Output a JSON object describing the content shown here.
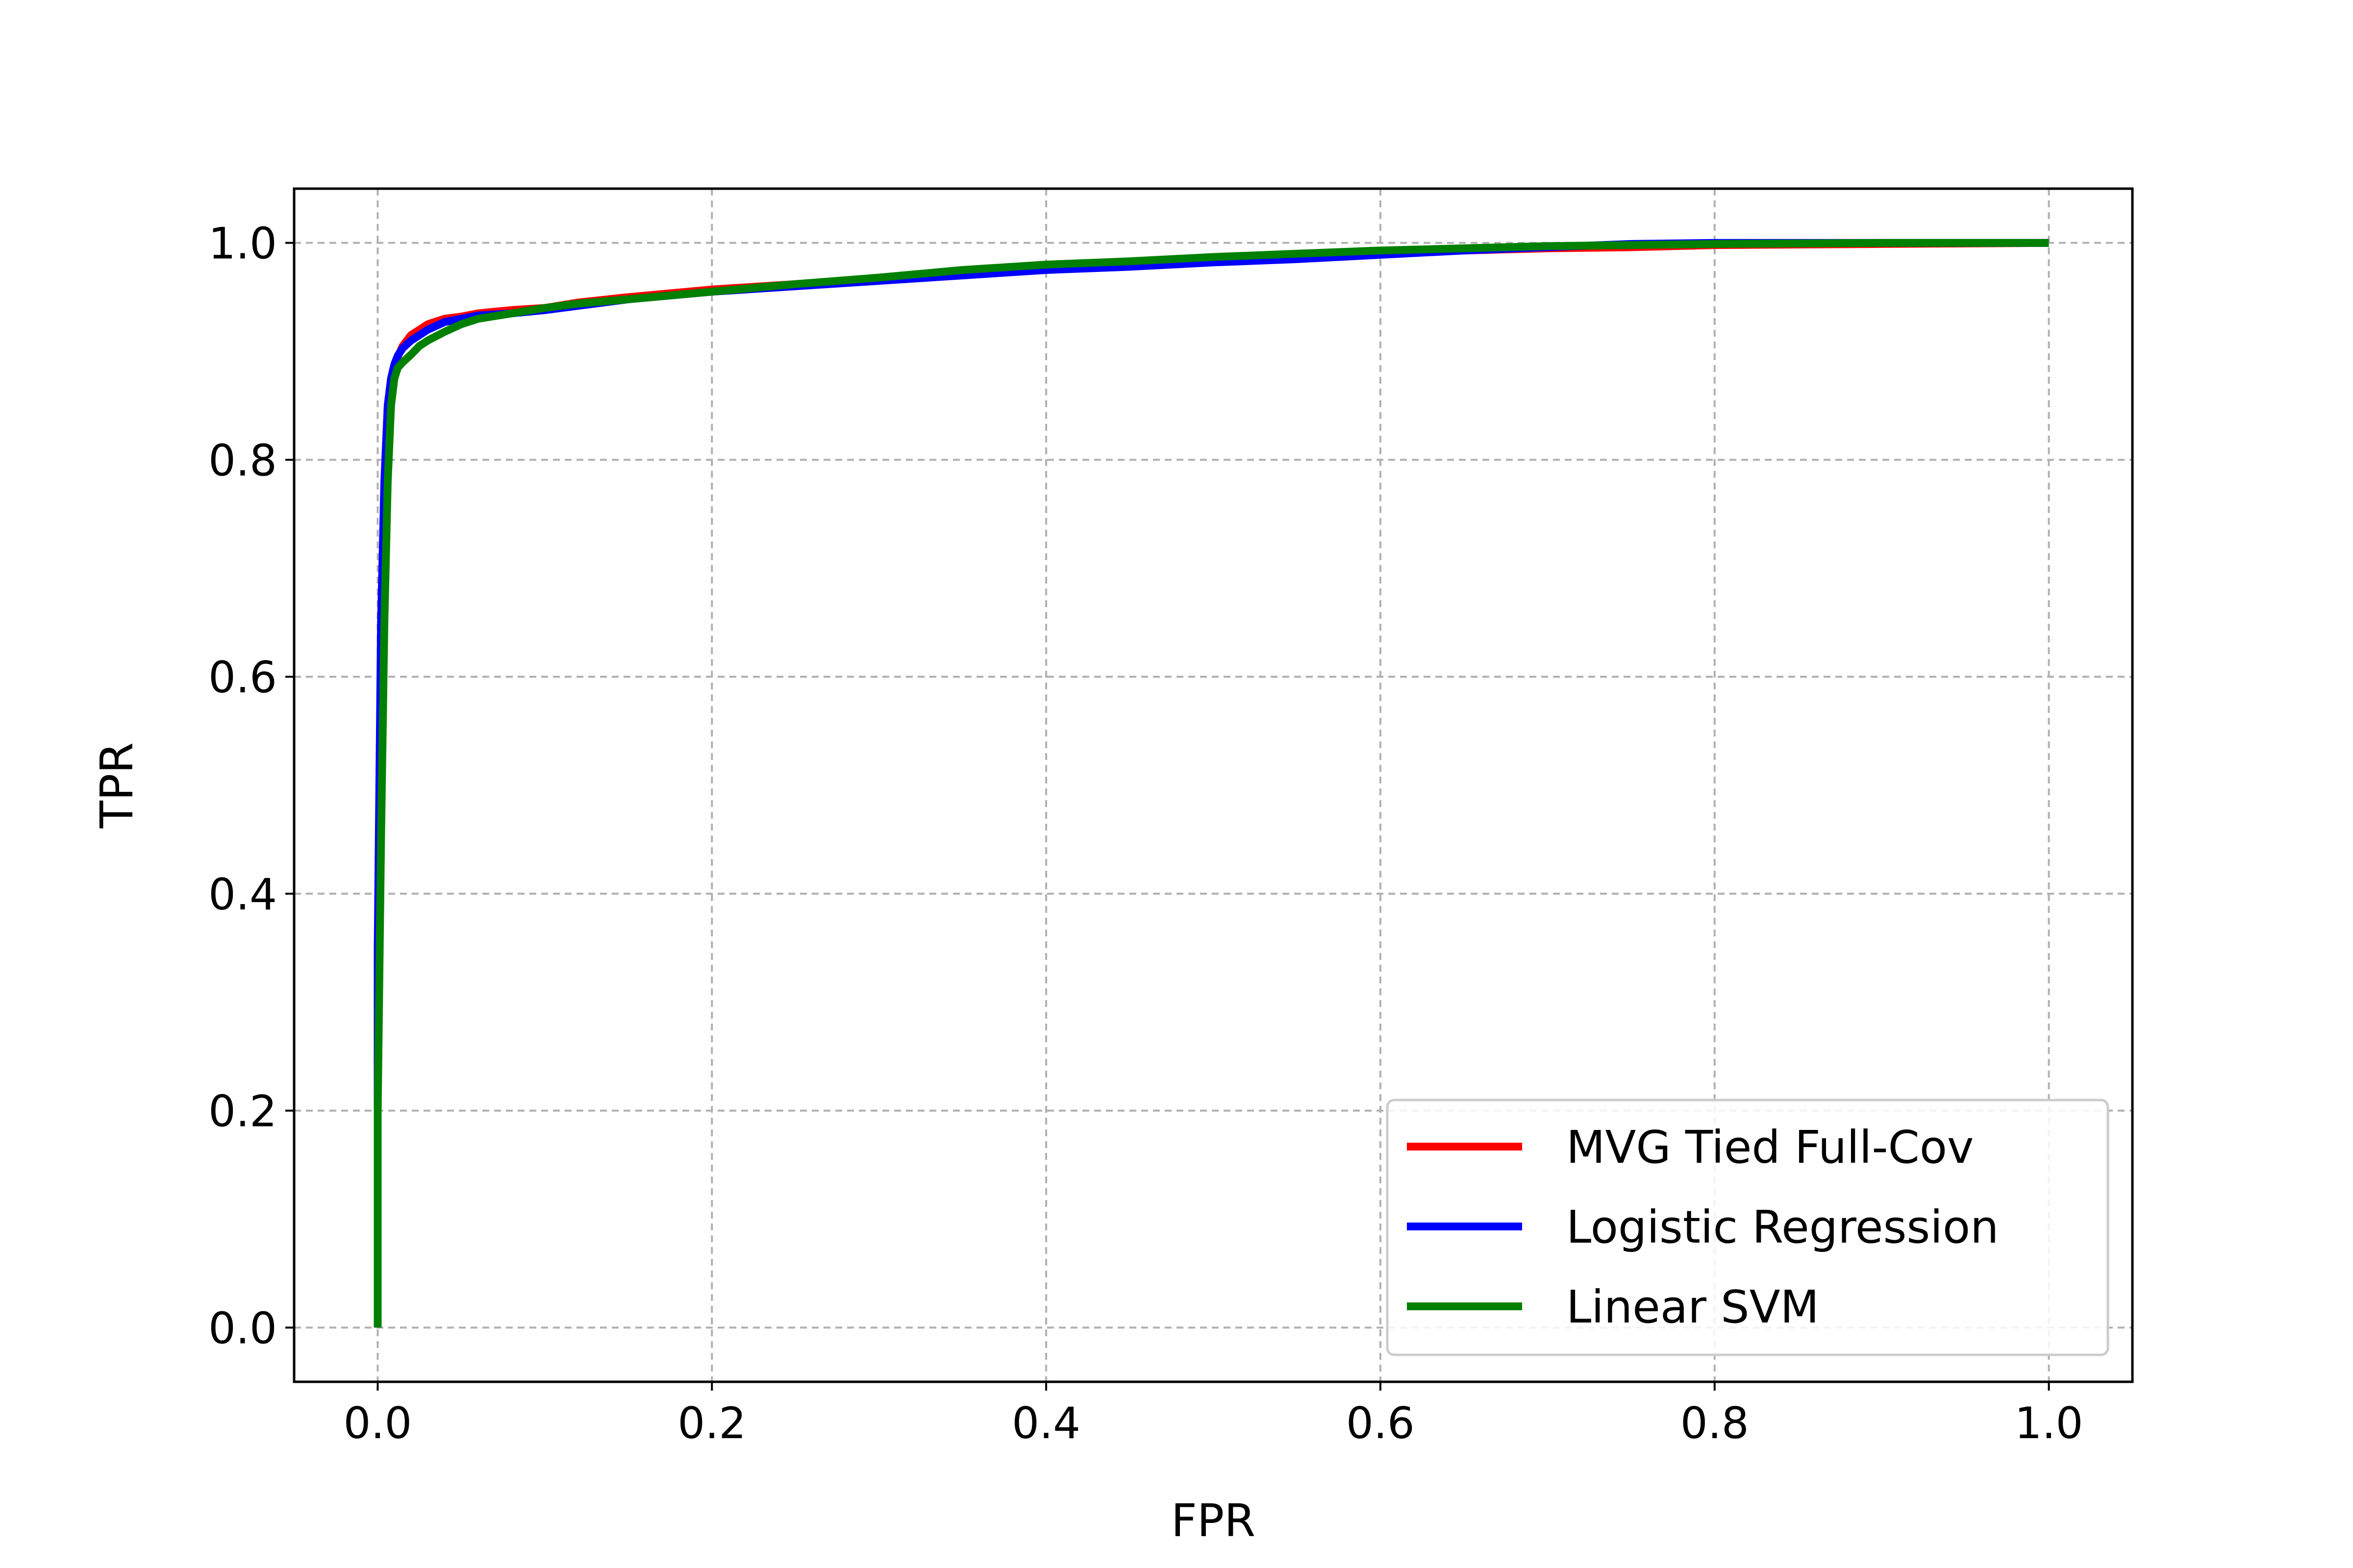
{
  "chart_data": {
    "type": "line",
    "title": "",
    "xlabel": "FPR",
    "ylabel": "TPR",
    "xlim": [
      -0.05,
      1.05
    ],
    "ylim": [
      -0.05,
      1.05
    ],
    "xticks": [
      "0.0",
      "0.2",
      "0.4",
      "0.6",
      "0.8",
      "1.0"
    ],
    "yticks": [
      "0.0",
      "0.2",
      "0.4",
      "0.6",
      "0.8",
      "1.0"
    ],
    "grid": true,
    "legend_position": "lower-right",
    "series": [
      {
        "name": "MVG Tied Full-Cov",
        "color": "#ff0000",
        "x": [
          0.0,
          0.0,
          0.002,
          0.004,
          0.006,
          0.008,
          0.01,
          0.012,
          0.015,
          0.02,
          0.025,
          0.03,
          0.04,
          0.05,
          0.06,
          0.08,
          0.1,
          0.12,
          0.15,
          0.2,
          0.25,
          0.3,
          0.35,
          0.4,
          0.45,
          0.5,
          0.55,
          0.6,
          0.65,
          0.7,
          0.75,
          0.8,
          0.9,
          1.0
        ],
        "y": [
          0.0,
          0.3,
          0.6,
          0.75,
          0.84,
          0.87,
          0.885,
          0.895,
          0.905,
          0.915,
          0.92,
          0.925,
          0.93,
          0.932,
          0.935,
          0.938,
          0.94,
          0.945,
          0.95,
          0.957,
          0.962,
          0.967,
          0.972,
          0.976,
          0.979,
          0.983,
          0.987,
          0.991,
          0.993,
          0.995,
          0.996,
          0.998,
          0.999,
          1.0
        ]
      },
      {
        "name": "Logistic Regression",
        "color": "#0000ff",
        "x": [
          0.0,
          0.0,
          0.002,
          0.004,
          0.006,
          0.008,
          0.01,
          0.012,
          0.015,
          0.02,
          0.025,
          0.03,
          0.04,
          0.05,
          0.06,
          0.08,
          0.1,
          0.12,
          0.15,
          0.2,
          0.25,
          0.3,
          0.35,
          0.4,
          0.45,
          0.5,
          0.55,
          0.6,
          0.65,
          0.7,
          0.75,
          0.8,
          0.9,
          1.0
        ],
        "y": [
          0.0,
          0.35,
          0.65,
          0.78,
          0.85,
          0.875,
          0.888,
          0.896,
          0.903,
          0.91,
          0.915,
          0.92,
          0.927,
          0.93,
          0.933,
          0.935,
          0.938,
          0.942,
          0.948,
          0.955,
          0.96,
          0.965,
          0.97,
          0.975,
          0.978,
          0.982,
          0.985,
          0.989,
          0.993,
          0.996,
          0.999,
          1.0,
          1.0,
          1.0
        ]
      },
      {
        "name": "Linear SVM",
        "color": "#008000",
        "x": [
          0.0,
          0.0,
          0.002,
          0.004,
          0.006,
          0.008,
          0.01,
          0.012,
          0.015,
          0.02,
          0.025,
          0.03,
          0.04,
          0.05,
          0.06,
          0.08,
          0.1,
          0.12,
          0.15,
          0.2,
          0.25,
          0.3,
          0.35,
          0.4,
          0.45,
          0.5,
          0.55,
          0.6,
          0.65,
          0.7,
          0.75,
          0.8,
          0.9,
          1.0
        ],
        "y": [
          0.0,
          0.2,
          0.45,
          0.65,
          0.78,
          0.85,
          0.875,
          0.885,
          0.89,
          0.897,
          0.905,
          0.91,
          0.918,
          0.925,
          0.93,
          0.935,
          0.94,
          0.944,
          0.948,
          0.955,
          0.962,
          0.968,
          0.975,
          0.98,
          0.983,
          0.987,
          0.99,
          0.993,
          0.995,
          0.997,
          0.998,
          0.999,
          1.0,
          1.0
        ]
      }
    ]
  }
}
